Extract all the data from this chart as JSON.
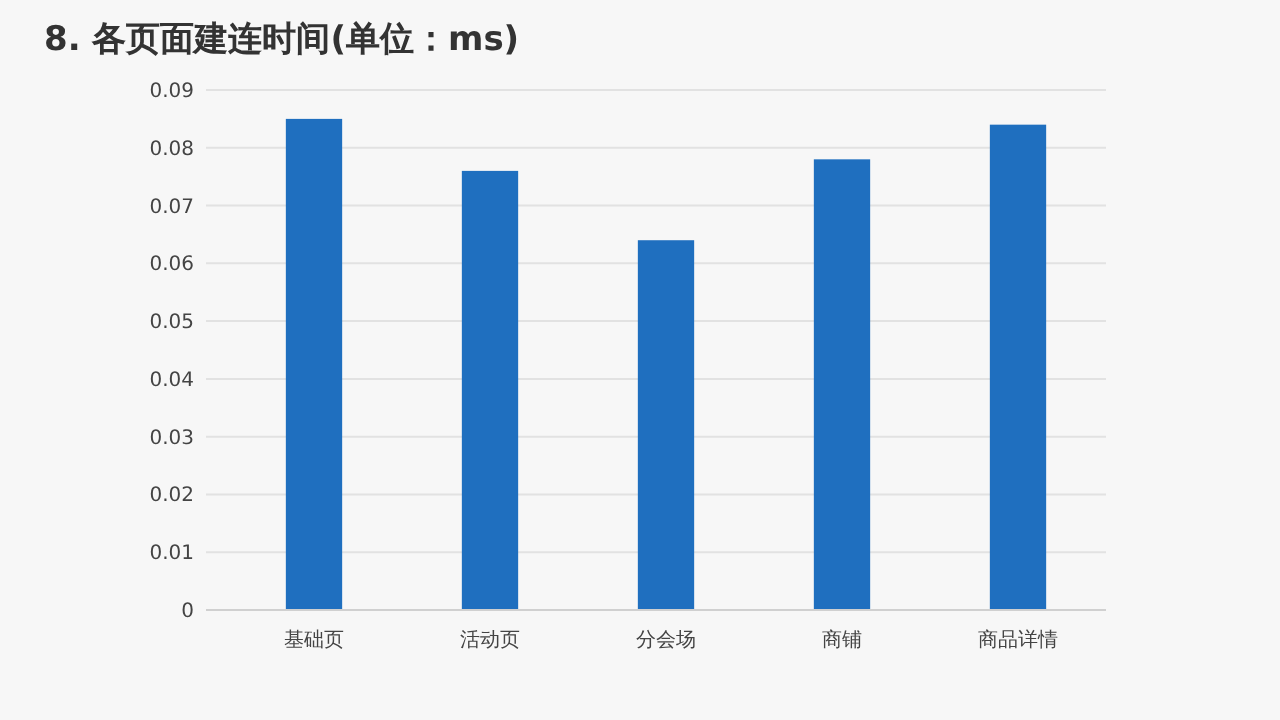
{
  "chart_data": {
    "type": "bar",
    "title": "8. 各页面建连时间(单位：ms)",
    "categories": [
      "基础页",
      "活动页",
      "分会场",
      "商铺",
      "商品详情"
    ],
    "values": [
      0.085,
      0.076,
      0.064,
      0.078,
      0.084
    ],
    "color": "#1f6fbf",
    "ylim": [
      0,
      0.09
    ],
    "yticks": [
      0,
      0.01,
      0.02,
      0.03,
      0.04,
      0.05,
      0.06,
      0.07,
      0.08,
      0.09
    ],
    "grid": "y"
  }
}
